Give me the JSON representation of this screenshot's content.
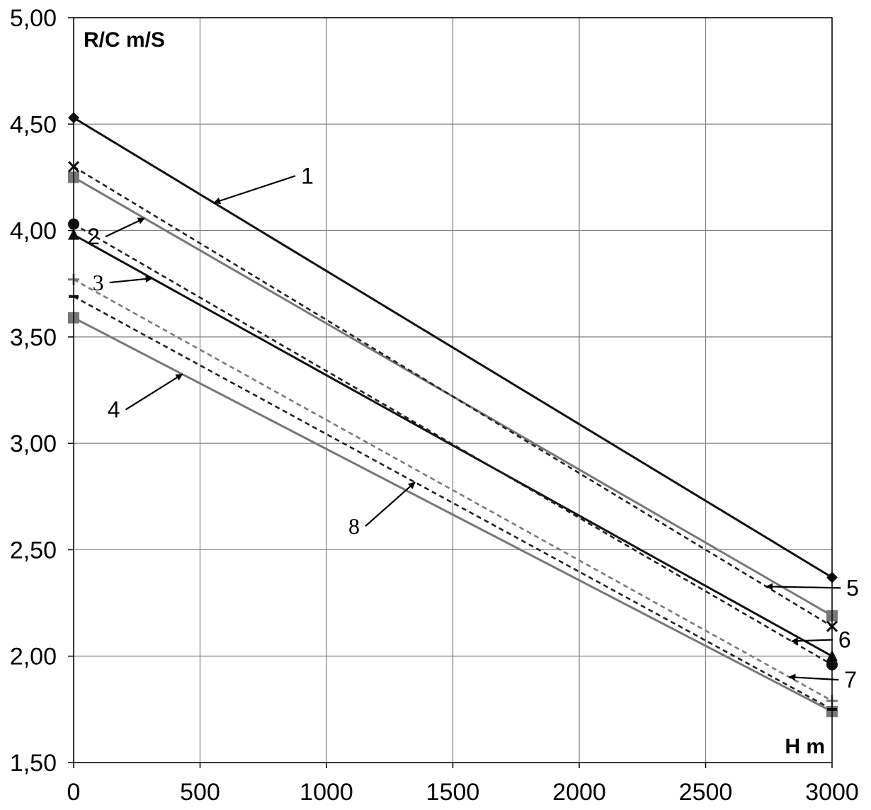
{
  "chart_data": {
    "type": "line",
    "title": "",
    "xlabel": "H m",
    "ylabel": "R/C m/S",
    "xlim": [
      0,
      3000
    ],
    "ylim": [
      1.5,
      5.0
    ],
    "xticks": [
      0,
      500,
      1000,
      1500,
      2000,
      2500,
      3000
    ],
    "xtick_labels": [
      "0",
      "500",
      "1000",
      "1500",
      "2000",
      "2500",
      "3000"
    ],
    "yticks": [
      1.5,
      2.0,
      2.5,
      3.0,
      3.5,
      4.0,
      4.5,
      5.0
    ],
    "ytick_labels": [
      "1,50",
      "2,00",
      "2,50",
      "3,00",
      "3,50",
      "4,00",
      "4,50",
      "5,00"
    ],
    "grid": true,
    "legend": "none",
    "series": [
      {
        "label": "1",
        "x": [
          0,
          3000
        ],
        "y": [
          4.53,
          2.37
        ],
        "color": "#111111",
        "dashed": false,
        "marker": "diamond"
      },
      {
        "label": "2",
        "x": [
          0,
          3000
        ],
        "y": [
          4.25,
          2.19
        ],
        "color": "#777777",
        "dashed": false,
        "marker": "square"
      },
      {
        "label": "3",
        "x": [
          0,
          3000
        ],
        "y": [
          3.98,
          2.0
        ],
        "color": "#111111",
        "dashed": false,
        "marker": "triangle"
      },
      {
        "label": "4",
        "x": [
          0,
          3000
        ],
        "y": [
          3.59,
          1.74
        ],
        "color": "#777777",
        "dashed": false,
        "marker": "square"
      },
      {
        "label": "5",
        "x": [
          0,
          3000
        ],
        "y": [
          4.3,
          2.14
        ],
        "color": "#111111",
        "dashed": true,
        "marker": "x"
      },
      {
        "label": "6",
        "x": [
          0,
          3000
        ],
        "y": [
          4.03,
          1.96
        ],
        "color": "#111111",
        "dashed": true,
        "marker": "circle"
      },
      {
        "label": "7",
        "x": [
          0,
          3000
        ],
        "y": [
          3.77,
          1.79
        ],
        "color": "#777777",
        "dashed": true,
        "marker": "plus"
      },
      {
        "label": "8",
        "x": [
          0,
          3000
        ],
        "y": [
          3.69,
          1.75
        ],
        "color": "#111111",
        "dashed": true,
        "marker": "dash"
      }
    ],
    "annotations": [
      {
        "text": "1",
        "font": "sans",
        "series": "1"
      },
      {
        "text": "2",
        "font": "sans",
        "series": "2"
      },
      {
        "text": "3",
        "font": "serif",
        "series": "3"
      },
      {
        "text": "4",
        "font": "sans",
        "series": "4"
      },
      {
        "text": "5",
        "font": "sans",
        "series": "5"
      },
      {
        "text": "6",
        "font": "sans",
        "series": "6"
      },
      {
        "text": "7",
        "font": "sans",
        "series": "7"
      },
      {
        "text": "8",
        "font": "serif",
        "series": "8"
      }
    ]
  }
}
